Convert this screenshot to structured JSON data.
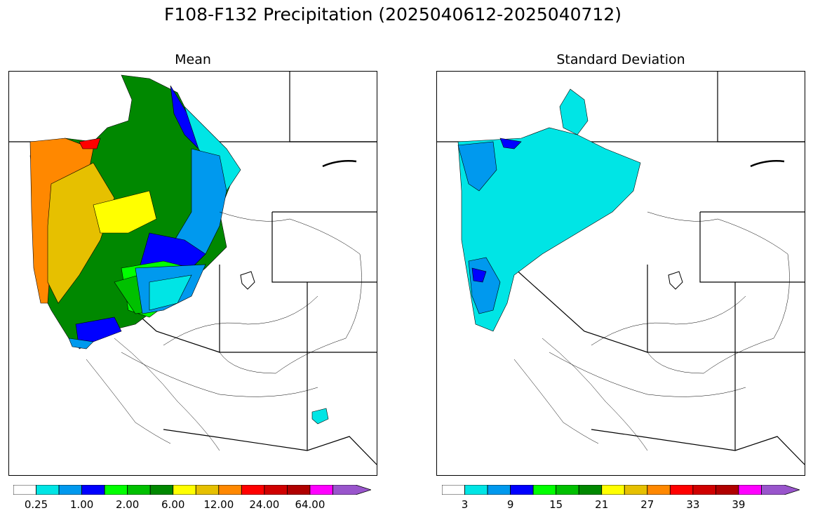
{
  "title": "F108-F132 Precipitation (2025040612-2025040712)",
  "panels": [
    {
      "title": "Mean",
      "colorbar": {
        "colors": [
          "#ffffff",
          "#00e5e5",
          "#0099ee",
          "#0000ff",
          "#00ff00",
          "#00c000",
          "#008800",
          "#ffff00",
          "#e6c000",
          "#ff8800",
          "#ff0000",
          "#d00000",
          "#b00000",
          "#ff00ff",
          "#9955cc"
        ],
        "tick_labels": [
          "0.25",
          "1.00",
          "2.00",
          "6.00",
          "12.00",
          "24.00",
          "64.00"
        ],
        "extend": "max"
      }
    },
    {
      "title": "Standard Deviation",
      "colorbar": {
        "colors": [
          "#ffffff",
          "#00e5e5",
          "#0099ee",
          "#0000ff",
          "#00ff00",
          "#00c000",
          "#008800",
          "#ffff00",
          "#e6c000",
          "#ff8800",
          "#ff0000",
          "#d00000",
          "#b00000",
          "#ff00ff",
          "#9955cc"
        ],
        "tick_labels": [
          "3",
          "9",
          "15",
          "21",
          "27",
          "33",
          "39"
        ],
        "extend": "max"
      }
    }
  ]
}
